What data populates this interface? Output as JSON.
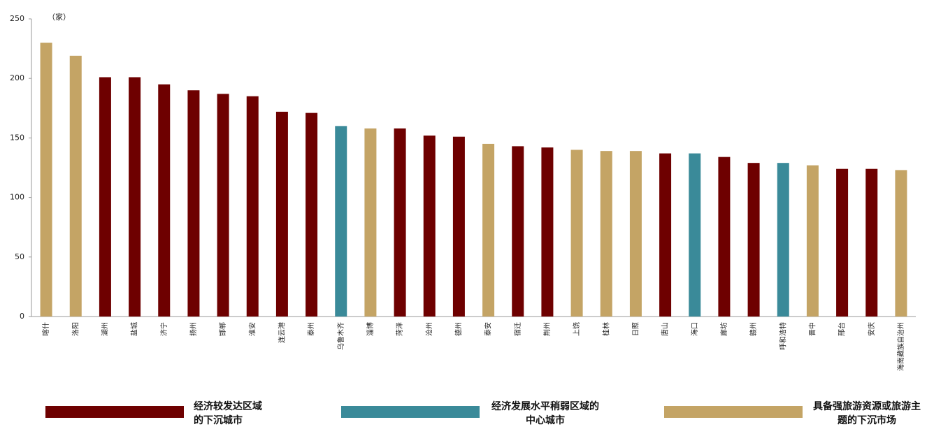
{
  "chart_data": {
    "type": "bar",
    "unit": "（家）",
    "categories": [
      "喀什",
      "洛阳",
      "湖州",
      "盐城",
      "济宁",
      "扬州",
      "邯郸",
      "淮安",
      "连云港",
      "泰州",
      "乌鲁木齐",
      "淄博",
      "菏泽",
      "沧州",
      "德州",
      "泰安",
      "宿迁",
      "荆州",
      "上饶",
      "桂林",
      "日照",
      "唐山",
      "海口",
      "廊坊",
      "赣州",
      "呼和浩特",
      "晋中",
      "邢台",
      "安庆",
      "海南藏族自治州"
    ],
    "values": [
      230,
      219,
      201,
      201,
      195,
      190,
      187,
      185,
      172,
      171,
      160,
      158,
      158,
      152,
      151,
      145,
      143,
      142,
      140,
      139,
      139,
      137,
      137,
      134,
      129,
      129,
      127,
      124,
      124,
      123
    ],
    "colors": [
      "#c4a465",
      "#c4a465",
      "#6e0000",
      "#6e0000",
      "#6e0000",
      "#6e0000",
      "#6e0000",
      "#6e0000",
      "#6e0000",
      "#6e0000",
      "#3a8a99",
      "#c4a465",
      "#6e0000",
      "#6e0000",
      "#6e0000",
      "#c4a465",
      "#6e0000",
      "#6e0000",
      "#c4a465",
      "#c4a465",
      "#c4a465",
      "#6e0000",
      "#3a8a99",
      "#6e0000",
      "#6e0000",
      "#3a8a99",
      "#c4a465",
      "#6e0000",
      "#6e0000",
      "#c4a465"
    ],
    "ylim": [
      0,
      250
    ],
    "yticks": [
      0,
      50,
      100,
      150,
      200,
      250
    ],
    "legend": [
      {
        "name": "经济较发达区域的下沉城市",
        "color": "#6e0000"
      },
      {
        "name": "经济发展水平稍弱区域的中心城市",
        "color": "#3a8a99"
      },
      {
        "name": "具备强旅游资源或旅游主题的下沉市场",
        "color": "#c4a465"
      }
    ]
  }
}
